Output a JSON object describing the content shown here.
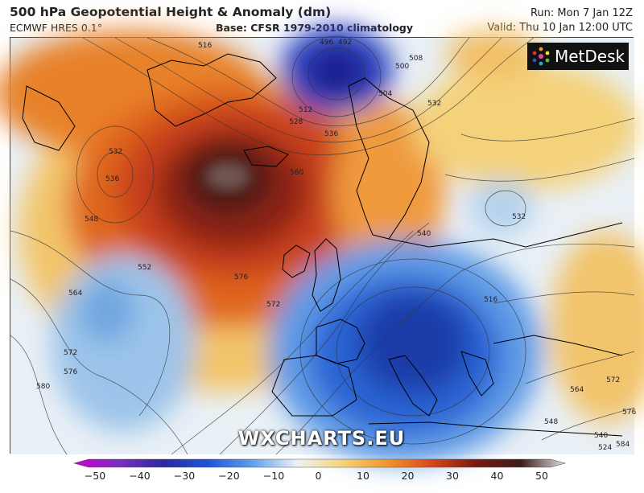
{
  "header": {
    "title": "500 hPa Geopotential Height & Anomaly (dm)",
    "model": "ECMWF HRES 0.1°",
    "base": "Base: CFSR 1979-2010 climatology",
    "run": "Run: Mon 7 Jan 12Z",
    "valid": "Valid: Thu 10 Jan 12:00 UTC"
  },
  "branding": {
    "logo_text": "MetDesk",
    "watermark": "WXCHARTS.EU"
  },
  "contour_labels": [
    "516",
    "496",
    "492",
    "500",
    "508",
    "504",
    "512",
    "528",
    "536",
    "532",
    "536",
    "532",
    "548",
    "552",
    "560",
    "576",
    "572",
    "564",
    "572",
    "576",
    "580",
    "540",
    "532",
    "516",
    "564",
    "548",
    "572",
    "576",
    "540",
    "584",
    "524"
  ],
  "colorbar": {
    "ticks": [
      "−50",
      "−40",
      "−30",
      "−20",
      "−10",
      "0",
      "10",
      "20",
      "30",
      "40",
      "50"
    ],
    "stops": [
      "#cc00cc",
      "#7a2dbf",
      "#2a2a9e",
      "#1f55d6",
      "#5fa0e8",
      "#eef2f6",
      "#f5d57a",
      "#f0962d",
      "#d8481b",
      "#7a1a10",
      "#3a1c1c",
      "#e0e0e0"
    ]
  }
}
